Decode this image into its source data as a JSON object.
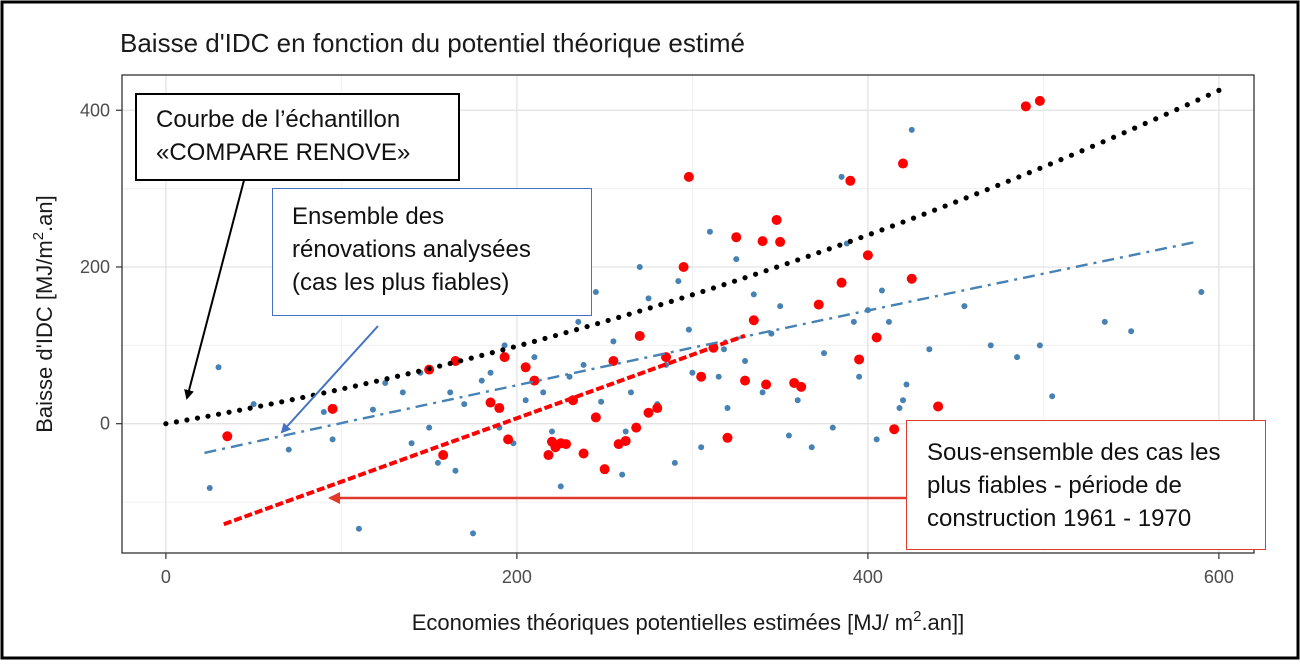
{
  "chart_data": {
    "type": "scatter",
    "title": "Baisse d'IDC en fonction du potentiel théorique estimé",
    "xlabel": {
      "main": "Economies théoriques potentielles estimées [MJ/ m",
      "sup": "2",
      "tail": ".an]]"
    },
    "ylabel": {
      "main": "Baisse d'IDC [MJ/m",
      "sup": "2",
      "tail": ".an]"
    },
    "xlim": [
      -25,
      620
    ],
    "ylim": [
      -165,
      445
    ],
    "x_ticks": [
      0,
      200,
      400,
      600
    ],
    "x_tick_labels": [
      "0",
      "200",
      "400",
      "600"
    ],
    "y_ticks": [
      0,
      200,
      400
    ],
    "y_tick_labels": [
      "0",
      "200",
      "400"
    ],
    "grid": true,
    "series": [
      {
        "name": "Ensemble des rénovations analysées",
        "kind": "points",
        "color": "#4682b4",
        "points": [
          [
            30,
            72
          ],
          [
            25,
            -82
          ],
          [
            50,
            25
          ],
          [
            70,
            -33
          ],
          [
            90,
            15
          ],
          [
            95,
            -20
          ],
          [
            110,
            -134
          ],
          [
            118,
            18
          ],
          [
            125,
            52
          ],
          [
            135,
            40
          ],
          [
            140,
            -25
          ],
          [
            145,
            65
          ],
          [
            150,
            -5
          ],
          [
            155,
            -50
          ],
          [
            162,
            40
          ],
          [
            165,
            -60
          ],
          [
            170,
            25
          ],
          [
            175,
            -140
          ],
          [
            180,
            55
          ],
          [
            185,
            65
          ],
          [
            190,
            -5
          ],
          [
            193,
            100
          ],
          [
            198,
            -25
          ],
          [
            205,
            30
          ],
          [
            210,
            85
          ],
          [
            215,
            40
          ],
          [
            220,
            -10
          ],
          [
            225,
            -80
          ],
          [
            230,
            60
          ],
          [
            235,
            130
          ],
          [
            238,
            75
          ],
          [
            245,
            168
          ],
          [
            248,
            28
          ],
          [
            255,
            105
          ],
          [
            260,
            -65
          ],
          [
            262,
            -10
          ],
          [
            265,
            40
          ],
          [
            270,
            200
          ],
          [
            275,
            160
          ],
          [
            280,
            25
          ],
          [
            285,
            75
          ],
          [
            290,
            -50
          ],
          [
            292,
            182
          ],
          [
            298,
            120
          ],
          [
            300,
            65
          ],
          [
            305,
            -30
          ],
          [
            310,
            245
          ],
          [
            315,
            60
          ],
          [
            318,
            95
          ],
          [
            320,
            20
          ],
          [
            325,
            210
          ],
          [
            330,
            80
          ],
          [
            335,
            165
          ],
          [
            340,
            40
          ],
          [
            345,
            115
          ],
          [
            350,
            150
          ],
          [
            355,
            -15
          ],
          [
            360,
            30
          ],
          [
            368,
            -30
          ],
          [
            375,
            90
          ],
          [
            380,
            -5
          ],
          [
            385,
            315
          ],
          [
            388,
            230
          ],
          [
            392,
            130
          ],
          [
            395,
            60
          ],
          [
            400,
            145
          ],
          [
            405,
            -20
          ],
          [
            408,
            170
          ],
          [
            412,
            130
          ],
          [
            418,
            20
          ],
          [
            420,
            30
          ],
          [
            422,
            50
          ],
          [
            425,
            375
          ],
          [
            430,
            -30
          ],
          [
            435,
            95
          ],
          [
            455,
            150
          ],
          [
            470,
            100
          ],
          [
            485,
            85
          ],
          [
            498,
            100
          ],
          [
            505,
            35
          ],
          [
            535,
            130
          ],
          [
            550,
            118
          ],
          [
            590,
            168
          ]
        ]
      },
      {
        "name": "Sous-ensemble des cas les plus fiables - période de construction 1961 - 1970",
        "kind": "points",
        "color": "#ff0000",
        "points": [
          [
            35,
            -16
          ],
          [
            95,
            19
          ],
          [
            150,
            69
          ],
          [
            158,
            -40
          ],
          [
            165,
            80
          ],
          [
            185,
            27
          ],
          [
            190,
            20
          ],
          [
            193,
            85
          ],
          [
            195,
            -20
          ],
          [
            205,
            72
          ],
          [
            210,
            55
          ],
          [
            218,
            -40
          ],
          [
            220,
            -23
          ],
          [
            222,
            -30
          ],
          [
            225,
            -25
          ],
          [
            228,
            -26
          ],
          [
            232,
            30
          ],
          [
            238,
            -38
          ],
          [
            245,
            8
          ],
          [
            250,
            -58
          ],
          [
            255,
            80
          ],
          [
            258,
            -26
          ],
          [
            262,
            -22
          ],
          [
            268,
            -5
          ],
          [
            270,
            112
          ],
          [
            275,
            14
          ],
          [
            280,
            20
          ],
          [
            285,
            85
          ],
          [
            295,
            200
          ],
          [
            298,
            315
          ],
          [
            305,
            60
          ],
          [
            312,
            97
          ],
          [
            320,
            -18
          ],
          [
            325,
            238
          ],
          [
            330,
            55
          ],
          [
            335,
            132
          ],
          [
            340,
            233
          ],
          [
            342,
            50
          ],
          [
            348,
            260
          ],
          [
            350,
            232
          ],
          [
            358,
            52
          ],
          [
            362,
            47
          ],
          [
            372,
            152
          ],
          [
            385,
            180
          ],
          [
            390,
            310
          ],
          [
            395,
            82
          ],
          [
            400,
            215
          ],
          [
            405,
            110
          ],
          [
            415,
            -7
          ],
          [
            420,
            332
          ],
          [
            425,
            185
          ],
          [
            440,
            22
          ],
          [
            490,
            405
          ],
          [
            498,
            412
          ]
        ]
      },
      {
        "name": "Courbe de l’échantillon «COMPARE RENOVE»",
        "kind": "fit-curve",
        "color": "#000000",
        "equation": "y = 0.388*x + 0.000535*x^2",
        "x_range": [
          0,
          600
        ]
      },
      {
        "name": "Tendance de l'ensemble",
        "kind": "fit-curve",
        "color": "#4682b4",
        "equation": "y = -48 + 0.49*x - 0.0000222*x^2",
        "x_range": [
          22,
          588
        ]
      },
      {
        "name": "Tendance du sous-ensemble 1961 - 1970",
        "kind": "fit-curve",
        "color": "#ff0000",
        "equation": "y = -155 + 0.81*x",
        "x_range": [
          33,
          330
        ]
      }
    ]
  },
  "annotations": {
    "compare_renove": {
      "lines": [
        "Courbe de l’échantillon",
        "«COMPARE RENOVE»"
      ],
      "border": "#000000"
    },
    "ensemble": {
      "lines": [
        "Ensemble des",
        "rénovations analysées",
        "(cas les plus fiables)"
      ],
      "border": "#4472c4"
    },
    "sous_ensemble": {
      "lines": [
        "Sous-ensemble des cas les",
        "plus fiables - période de",
        "construction 1961 - 1970"
      ],
      "border": "#e03a2a"
    }
  }
}
